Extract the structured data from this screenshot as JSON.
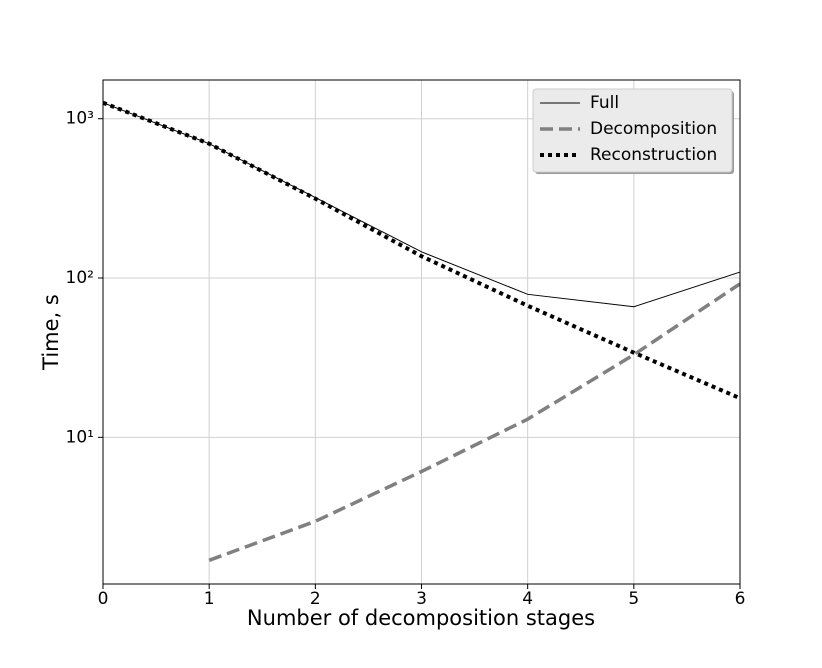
{
  "chart_data": {
    "type": "line",
    "x_label": "Number of decomposition stages",
    "y_label": "Time, s",
    "x": [
      0,
      1,
      2,
      3,
      4,
      5,
      6
    ],
    "series": [
      {
        "name": "Full",
        "color": "#000000",
        "style": "solid",
        "width": 1,
        "values": [
          1260,
          697,
          320,
          146,
          79,
          66,
          109
        ]
      },
      {
        "name": "Decomposition",
        "color": "#808080",
        "style": "dashed",
        "width": 3.5,
        "values": [
          null,
          1.69,
          2.97,
          6.1,
          13,
          33,
          92
        ]
      },
      {
        "name": "Reconstruction",
        "color": "#000000",
        "style": "dotted",
        "width": 4,
        "values": [
          1260,
          697,
          315,
          137,
          67,
          34,
          17.6
        ]
      }
    ],
    "xlim": [
      0,
      6
    ],
    "xticks": [
      0,
      1,
      2,
      3,
      4,
      5,
      6
    ],
    "ylim": [
      1.2,
      1750
    ],
    "y_scale": "log",
    "yticks": [
      {
        "value": 10,
        "label": "10¹"
      },
      {
        "value": 100,
        "label": "10²"
      },
      {
        "value": 1000,
        "label": "10³"
      }
    ],
    "grid": true,
    "legend": "upper right"
  }
}
